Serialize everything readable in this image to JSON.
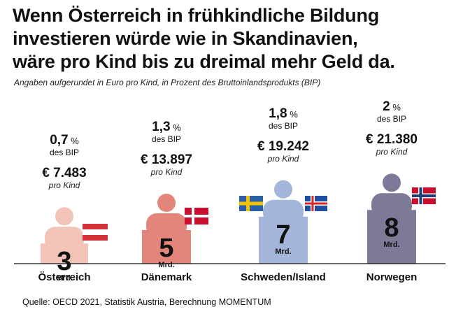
{
  "title": {
    "line1": "Wenn Österreich in frühkindliche Bildung",
    "line2": "investieren würde wie in Skandinavien,",
    "line3": "wäre pro Kind bis zu dreimal mehr Geld da."
  },
  "subtitle": "Angaben aufgerundet in Euro pro Kind, in Prozent des Bruttoinlandsprodukts (BIP)",
  "source": "Quelle: OECD 2021, Statistik Austria, Berechnung MOMENTUM",
  "chart_data": {
    "type": "bar",
    "categories": [
      "Österreich",
      "Dänemark",
      "Schweden/Island",
      "Norwegen"
    ],
    "values": [
      3,
      5,
      7,
      8
    ],
    "value_unit": "Mrd.",
    "bip_percent_labels": [
      "0,7",
      "1,3",
      "1,8",
      "2"
    ],
    "percent_sign": "%",
    "bip_suffix": "des BIP",
    "per_child_labels": [
      "€ 7.483",
      "€ 13.897",
      "€ 19.242",
      "€ 21.380"
    ],
    "per_child_suffix": "pro Kind",
    "colors": [
      "#f2c4b8",
      "#e3857a",
      "#a3b5d8",
      "#7c7a96"
    ],
    "flags": [
      "austria-flag",
      "denmark-flag",
      "sweden-flag iceland-flag",
      "norway-flag"
    ]
  }
}
